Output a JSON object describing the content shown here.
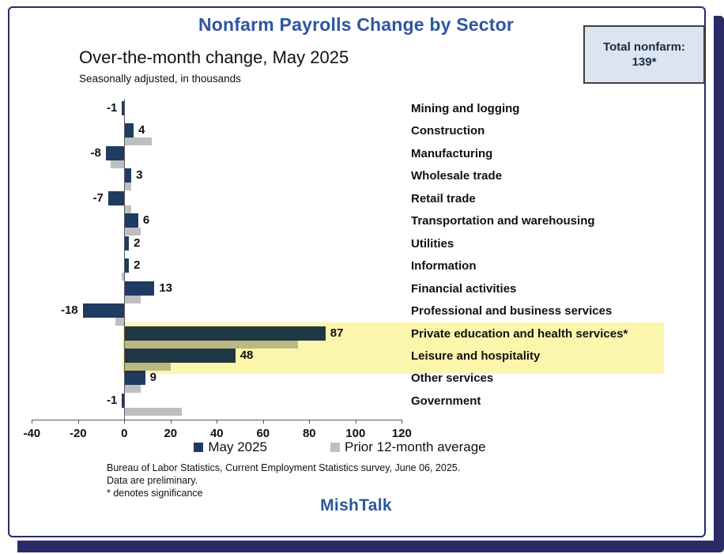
{
  "title": "Nonfarm Payrolls Change by Sector",
  "total_box": {
    "label": "Total nonfarm:",
    "value": "139*"
  },
  "subtitle": "Over-the-month change, May 2025",
  "subnote": "Seasonally adjusted, in thousands",
  "legend": {
    "items": [
      {
        "label": "May 2025",
        "color": "#1f3a63"
      },
      {
        "label": "Prior 12-month average",
        "color": "#bfbfbf"
      }
    ]
  },
  "footer": {
    "line1": "Bureau of Labor Statistics, Current Employment Statistics survey, June 06, 2025.",
    "line2": "Data are preliminary.",
    "line3": "* denotes significance",
    "brand": "MishTalk"
  },
  "colors": {
    "bar_navy": "#1f3a63",
    "bar_gray": "#bfbfbf",
    "highlight_yellow": "#fcf6ad",
    "frame_navy": "#2b2a66",
    "title_blue": "#2e55a0",
    "brand_blue": "#2b579a",
    "total_box_bg": "#dbe5f1"
  },
  "chart_data": {
    "type": "bar",
    "orientation": "horizontal",
    "title": "Over-the-month change, May 2025",
    "units": "thousands, seasonally adjusted",
    "categories": [
      "Mining and logging",
      "Construction",
      "Manufacturing",
      "Wholesale trade",
      "Retail trade",
      "Transportation and warehousing",
      "Utilities",
      "Information",
      "Financial activities",
      "Professional and business services",
      "Private education and health services*",
      "Leisure and hospitality",
      "Other services",
      "Government"
    ],
    "series": [
      {
        "name": "May 2025",
        "color": "#1f3a63",
        "values": [
          -1,
          4,
          -8,
          3,
          -7,
          6,
          2,
          2,
          13,
          -18,
          87,
          48,
          9,
          -1
        ],
        "data_labels": true
      },
      {
        "name": "Prior 12-month average",
        "color": "#bfbfbf",
        "values": [
          0,
          12,
          -6,
          3,
          3,
          7,
          0,
          -1,
          7,
          -4,
          75,
          20,
          7,
          25
        ],
        "data_labels": false
      }
    ],
    "xlim": [
      -40,
      120
    ],
    "xticks": [
      -40,
      -20,
      0,
      20,
      40,
      60,
      80,
      100,
      120
    ],
    "grid": false,
    "legend_position": "bottom",
    "highlight_band": {
      "categories": [
        "Private education and health services*",
        "Leisure and hospitality"
      ],
      "color": "#fcf6ad"
    },
    "annotations": [
      "Total nonfarm: 139*"
    ]
  }
}
